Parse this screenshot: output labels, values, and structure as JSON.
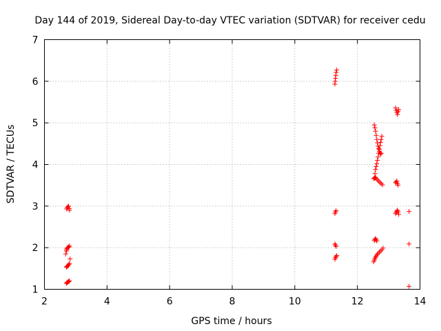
{
  "chart_data": {
    "type": "scatter",
    "title": "Day 144 of 2019, Sidereal Day-to-day VTEC variation (SDTVAR) for receiver cedu",
    "xlabel": "GPS time / hours",
    "ylabel": "SDTVAR / TECUs",
    "xlim": [
      2,
      14
    ],
    "ylim": [
      1,
      7
    ],
    "xticks": [
      "2",
      "4",
      "6",
      "8",
      "10",
      "12",
      "14"
    ],
    "yticks": [
      "1",
      "2",
      "3",
      "4",
      "5",
      "6",
      "7"
    ],
    "grid": true,
    "marker_color": "#ff0000",
    "series": [
      {
        "marker": "plus",
        "points": [
          [
            2.7,
            1.14
          ],
          [
            2.72,
            1.16
          ],
          [
            2.74,
            1.17
          ],
          [
            2.76,
            1.18
          ],
          [
            2.78,
            1.19
          ],
          [
            2.8,
            1.2
          ],
          [
            2.7,
            1.53
          ],
          [
            2.72,
            1.55
          ],
          [
            2.74,
            1.56
          ],
          [
            2.76,
            1.57
          ],
          [
            2.78,
            1.6
          ],
          [
            2.8,
            1.62
          ],
          [
            2.82,
            1.73
          ],
          [
            2.68,
            1.85
          ],
          [
            2.7,
            1.92
          ],
          [
            2.71,
            1.95
          ],
          [
            2.72,
            1.98
          ],
          [
            2.74,
            2.0
          ],
          [
            2.76,
            2.01
          ],
          [
            2.78,
            2.02
          ],
          [
            2.8,
            2.04
          ],
          [
            2.71,
            2.93
          ],
          [
            2.73,
            2.96
          ],
          [
            2.75,
            2.98
          ],
          [
            2.77,
            3.0
          ],
          [
            2.79,
            2.94
          ],
          [
            2.8,
            2.9
          ],
          [
            11.28,
            1.72
          ],
          [
            11.3,
            1.76
          ],
          [
            11.32,
            1.79
          ],
          [
            11.34,
            1.81
          ],
          [
            11.28,
            2.09
          ],
          [
            11.3,
            2.06
          ],
          [
            11.32,
            2.03
          ],
          [
            11.28,
            2.82
          ],
          [
            11.3,
            2.86
          ],
          [
            11.32,
            2.89
          ],
          [
            11.28,
            5.93
          ],
          [
            11.29,
            6.0
          ],
          [
            11.3,
            6.07
          ],
          [
            11.31,
            6.14
          ],
          [
            11.32,
            6.21
          ],
          [
            11.34,
            6.27
          ],
          [
            12.52,
            1.66
          ],
          [
            12.54,
            1.7
          ],
          [
            12.56,
            1.74
          ],
          [
            12.58,
            1.77
          ],
          [
            12.6,
            1.8
          ],
          [
            12.63,
            1.83
          ],
          [
            12.66,
            1.86
          ],
          [
            12.7,
            1.89
          ],
          [
            12.74,
            1.92
          ],
          [
            12.78,
            1.95
          ],
          [
            12.82,
            1.99
          ],
          [
            12.54,
            2.17
          ],
          [
            12.56,
            2.2
          ],
          [
            12.58,
            2.22
          ],
          [
            12.6,
            2.19
          ],
          [
            12.62,
            2.16
          ],
          [
            12.52,
            3.66
          ],
          [
            12.54,
            3.67
          ],
          [
            12.56,
            3.68
          ],
          [
            12.58,
            3.69
          ],
          [
            12.6,
            3.66
          ],
          [
            12.64,
            3.63
          ],
          [
            12.68,
            3.6
          ],
          [
            12.72,
            3.57
          ],
          [
            12.76,
            3.54
          ],
          [
            12.8,
            3.51
          ],
          [
            12.56,
            3.78
          ],
          [
            12.58,
            3.88
          ],
          [
            12.6,
            3.95
          ],
          [
            12.62,
            4.02
          ],
          [
            12.64,
            4.1
          ],
          [
            12.66,
            4.18
          ],
          [
            12.68,
            4.27
          ],
          [
            12.7,
            4.36
          ],
          [
            12.72,
            4.45
          ],
          [
            12.74,
            4.53
          ],
          [
            12.76,
            4.6
          ],
          [
            12.78,
            4.68
          ],
          [
            12.54,
            4.95
          ],
          [
            12.56,
            4.88
          ],
          [
            12.58,
            4.8
          ],
          [
            12.6,
            4.7
          ],
          [
            12.62,
            4.6
          ],
          [
            12.64,
            4.52
          ],
          [
            12.66,
            4.44
          ],
          [
            12.68,
            4.38
          ],
          [
            12.7,
            4.32
          ],
          [
            12.72,
            4.28
          ],
          [
            12.74,
            4.25
          ],
          [
            12.76,
            4.27
          ],
          [
            13.22,
            2.82
          ],
          [
            13.24,
            2.85
          ],
          [
            13.26,
            2.88
          ],
          [
            13.28,
            2.9
          ],
          [
            13.3,
            2.86
          ],
          [
            13.32,
            2.8
          ],
          [
            13.22,
            3.56
          ],
          [
            13.24,
            3.58
          ],
          [
            13.26,
            3.6
          ],
          [
            13.28,
            3.54
          ],
          [
            13.3,
            3.5
          ],
          [
            13.22,
            5.36
          ],
          [
            13.24,
            5.3
          ],
          [
            13.26,
            5.25
          ],
          [
            13.28,
            5.2
          ],
          [
            13.3,
            5.27
          ],
          [
            13.32,
            5.32
          ],
          [
            13.65,
            2.87
          ],
          [
            13.65,
            2.09
          ],
          [
            13.65,
            1.07
          ]
        ]
      }
    ]
  }
}
